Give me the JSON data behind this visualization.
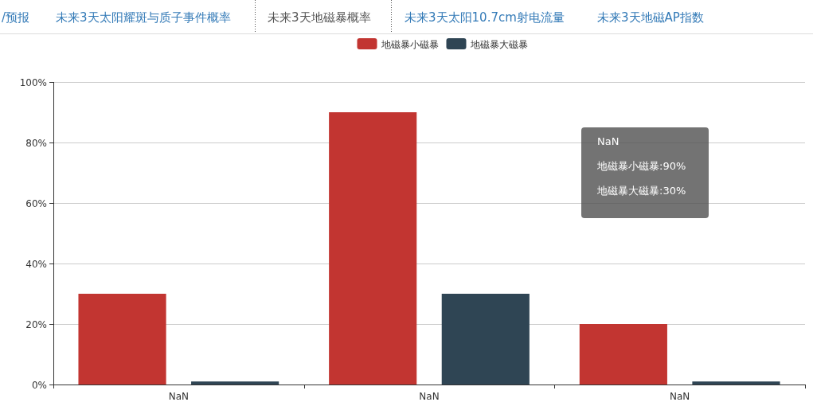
{
  "chart_data": {
    "type": "bar",
    "categories": [
      "NaN",
      "NaN",
      "NaN"
    ],
    "series": [
      {
        "name": "地磁暴小磁暴",
        "color": "#c23531",
        "values": [
          30,
          90,
          20
        ]
      },
      {
        "name": "地磁暴大磁暴",
        "color": "#2f4554",
        "values": [
          1,
          30,
          1
        ]
      }
    ],
    "ylim": [
      0,
      100
    ],
    "yticks": [
      {
        "value": 0,
        "label": "0%"
      },
      {
        "value": 20,
        "label": "20%"
      },
      {
        "value": 40,
        "label": "40%"
      },
      {
        "value": 60,
        "label": "60%"
      },
      {
        "value": 80,
        "label": "80%"
      },
      {
        "value": 100,
        "label": "100%"
      }
    ],
    "grid": "y",
    "legend": "top",
    "annotations": [
      "/预报",
      "未来3天太阳耀斑与质子事件概率",
      "未来3天地磁暴概率",
      "未来3天太阳10.7cm射电流量",
      "未来3天地磁AP指数",
      "NaN",
      "地磁暴小磁暴:90%",
      "地磁暴大磁暴:30%"
    ]
  }
}
